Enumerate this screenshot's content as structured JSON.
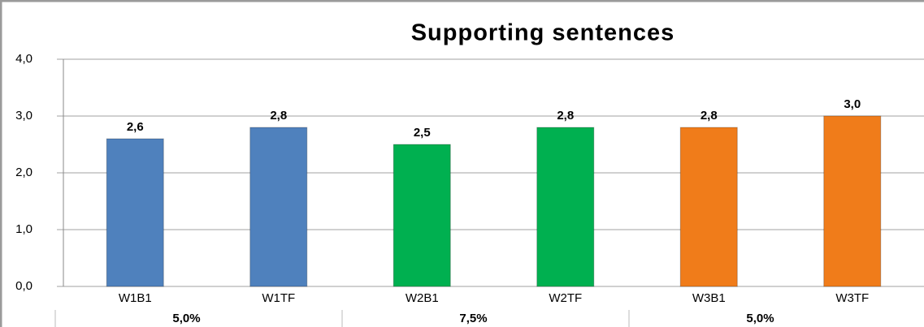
{
  "chart_data": {
    "type": "bar",
    "title": "Supporting sentences",
    "categories": [
      "W1B1",
      "W1TF",
      "W2B1",
      "W2TF",
      "W3B1",
      "W3TF"
    ],
    "values": [
      2.6,
      2.8,
      2.5,
      2.8,
      2.8,
      3.0
    ],
    "value_labels": [
      "2,6",
      "2,8",
      "2,5",
      "2,8",
      "2,8",
      "3,0"
    ],
    "colors": [
      "#4f81bd",
      "#4f81bd",
      "#00b050",
      "#00b050",
      "#f07c1a",
      "#f07c1a"
    ],
    "groups": [
      {
        "label": "5,0%",
        "color": "#000000"
      },
      {
        "label": "7,5%",
        "color": "#00a050"
      },
      {
        "label": "5,0%",
        "color": "#000000"
      }
    ],
    "ylim": [
      0,
      4
    ],
    "yticks": [
      {
        "value": 0,
        "label": "0,0"
      },
      {
        "value": 1,
        "label": "1,0"
      },
      {
        "value": 2,
        "label": "2,0"
      },
      {
        "value": 3,
        "label": "3,0"
      },
      {
        "value": 4,
        "label": "4,0"
      }
    ],
    "grid": true
  }
}
